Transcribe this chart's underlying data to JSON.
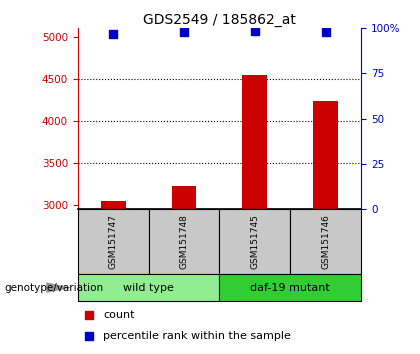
{
  "title": "GDS2549 / 185862_at",
  "samples": [
    "GSM151747",
    "GSM151748",
    "GSM151745",
    "GSM151746"
  ],
  "bar_values": [
    3040,
    3220,
    4540,
    4230
  ],
  "percentile_values": [
    97,
    98,
    98.5,
    98
  ],
  "groups": [
    {
      "label": "wild type",
      "color": "#90EE90"
    },
    {
      "label": "daf-19 mutant",
      "color": "#32CD32"
    }
  ],
  "bar_color": "#CC0000",
  "percentile_color": "#0000CC",
  "ylim_left": [
    2950,
    5100
  ],
  "ylim_right": [
    0,
    100
  ],
  "yticks_left": [
    3000,
    3500,
    4000,
    4500,
    5000
  ],
  "yticks_right": [
    0,
    25,
    50,
    75,
    100
  ],
  "ytick_labels_right": [
    "0",
    "25",
    "50",
    "75",
    "100%"
  ],
  "grid_values": [
    3500,
    4000,
    4500
  ],
  "left_axis_color": "#CC0000",
  "right_axis_color": "#0000CC",
  "bar_width": 0.35,
  "sample_box_color": "#C8C8C8",
  "legend_count_label": "count",
  "legend_percentile_label": "percentile rank within the sample",
  "group_label": "genotype/variation",
  "fig_width": 4.2,
  "fig_height": 3.54,
  "dpi": 100
}
